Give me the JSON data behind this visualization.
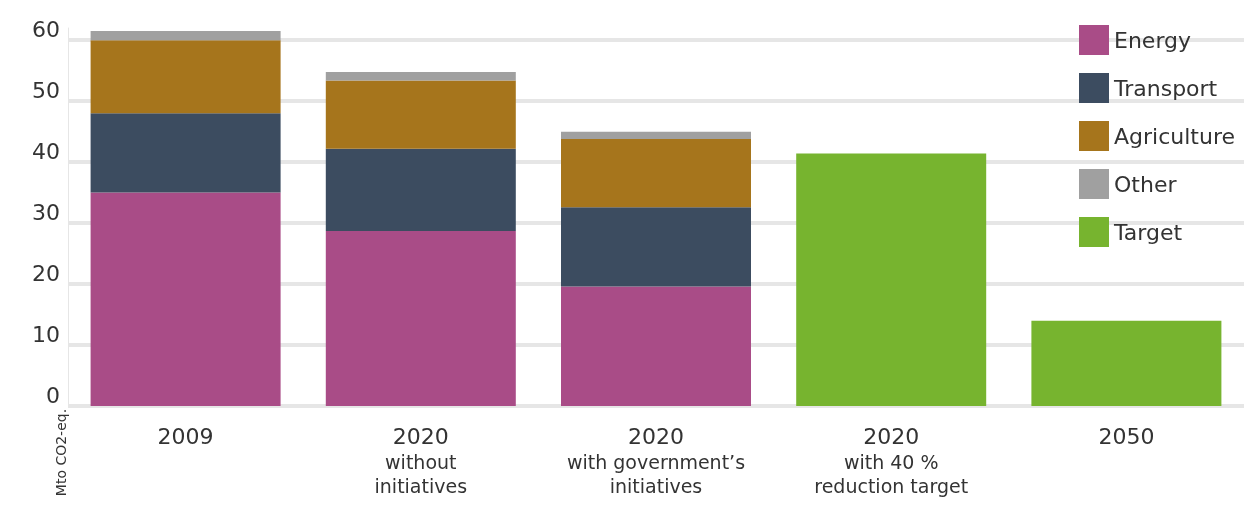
{
  "chart_data": {
    "type": "bar",
    "stacked": true,
    "ylabel": "Mto CO2-eq.",
    "categories": [
      "2009",
      "2020\nwithout\ninitiatives",
      "2020\nwith government’s\ninitiatives",
      "2020\nwith 40 %\nreduction target",
      "2050"
    ],
    "series": [
      {
        "name": "Energy",
        "color": "#a94c87",
        "values": [
          35,
          28.7,
          19.6,
          null,
          null
        ]
      },
      {
        "name": "Transport",
        "color": "#3c4c60",
        "values": [
          13,
          13.5,
          13,
          null,
          null
        ]
      },
      {
        "name": "Agriculture",
        "color": "#a6751c",
        "values": [
          12,
          11.2,
          11.2,
          null,
          null
        ]
      },
      {
        "name": "Other",
        "color": "#a0a0a0",
        "values": [
          1.5,
          1.4,
          1.2,
          null,
          null
        ]
      },
      {
        "name": "Target",
        "color": "#77b42f",
        "values": [
          null,
          null,
          null,
          41.4,
          14
        ]
      }
    ],
    "ylim": [
      0,
      62
    ],
    "yticks": [
      0,
      10,
      20,
      30,
      40,
      50,
      60
    ],
    "grid": "y",
    "legend": "top right"
  }
}
